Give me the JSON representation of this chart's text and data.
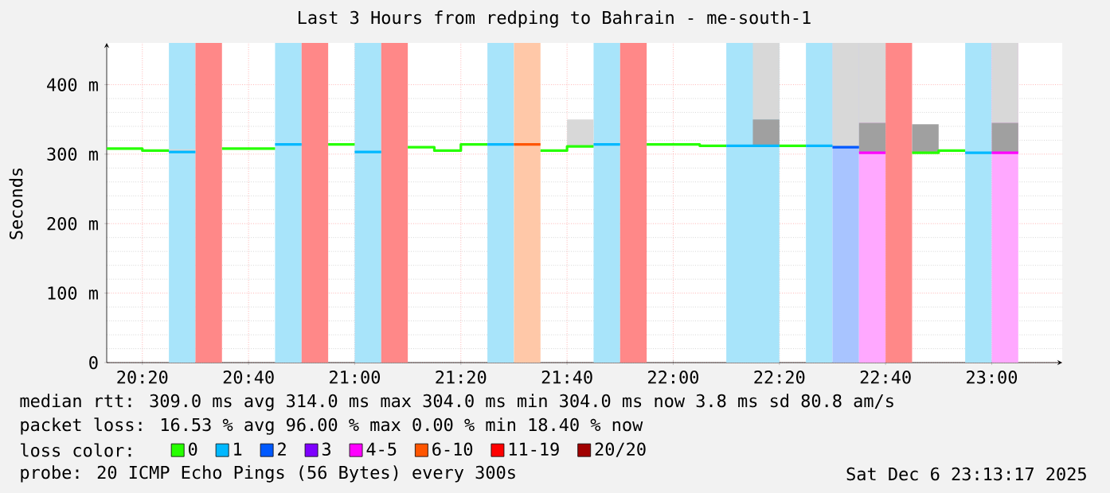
{
  "chart_data": {
    "type": "line",
    "title": "Last 3 Hours from redping to Bahrain - me-south-1",
    "ylabel": "Seconds",
    "legend_title": "loss color:",
    "xlim": [
      20.2214,
      23.2214
    ],
    "ylim": [
      0,
      460
    ],
    "xticks": [
      {
        "value": 20.3333,
        "label": "20:20"
      },
      {
        "value": 20.6667,
        "label": "20:40"
      },
      {
        "value": 21.0,
        "label": "21:00"
      },
      {
        "value": 21.3333,
        "label": "21:20"
      },
      {
        "value": 21.6667,
        "label": "21:40"
      },
      {
        "value": 22.0,
        "label": "22:00"
      },
      {
        "value": 22.3333,
        "label": "22:20"
      },
      {
        "value": 22.6667,
        "label": "22:40"
      },
      {
        "value": 23.0,
        "label": "23:00"
      }
    ],
    "yticks": [
      {
        "value": 0,
        "label": "0"
      },
      {
        "value": 100,
        "label": "100 m"
      },
      {
        "value": 200,
        "label": "200 m"
      },
      {
        "value": 300,
        "label": "300 m"
      },
      {
        "value": 400,
        "label": "400 m"
      }
    ],
    "grid": true,
    "legend": "bottom",
    "bands": [
      {
        "axis": "x",
        "from": 20.4167,
        "to": 20.5,
        "color": "#a8e4fa"
      },
      {
        "axis": "x",
        "from": 20.5,
        "to": 20.5833,
        "color": "#ff8888"
      },
      {
        "axis": "x",
        "from": 20.75,
        "to": 20.8333,
        "color": "#a8e4fa"
      },
      {
        "axis": "x",
        "from": 20.8333,
        "to": 20.9167,
        "color": "#ff8888"
      },
      {
        "axis": "x",
        "from": 21.0,
        "to": 21.0833,
        "color": "#a8e4fa"
      },
      {
        "axis": "x",
        "from": 21.0833,
        "to": 21.1667,
        "color": "#ff8888"
      },
      {
        "axis": "x",
        "from": 21.4167,
        "to": 21.5,
        "color": "#a8e4fa"
      },
      {
        "axis": "x",
        "from": 21.5,
        "to": 21.5833,
        "color": "#ffc8a8"
      },
      {
        "axis": "x",
        "from": 21.75,
        "to": 21.8333,
        "color": "#a8e4fa"
      },
      {
        "axis": "x",
        "from": 21.8333,
        "to": 21.9167,
        "color": "#ff8888"
      },
      {
        "axis": "x",
        "from": 22.1667,
        "to": 22.3333,
        "color": "#a8e4fa"
      },
      {
        "axis": "x",
        "from": 22.4167,
        "to": 22.5,
        "color": "#a8e4fa"
      },
      {
        "axis": "x",
        "from": 22.5,
        "to": 22.5833,
        "color": "#a8c4ff"
      },
      {
        "axis": "x",
        "from": 22.5833,
        "to": 22.6667,
        "color": "#ffa8ff"
      },
      {
        "axis": "x",
        "from": 22.6667,
        "to": 22.75,
        "color": "#ff8888"
      },
      {
        "axis": "x",
        "from": 22.9167,
        "to": 23.0,
        "color": "#a8e4fa"
      },
      {
        "axis": "x",
        "from": 23.0,
        "to": 23.0833,
        "color": "#ffa8ff"
      }
    ],
    "series": [
      {
        "type": "bar",
        "color": "#d8d8d8",
        "x": [
          20.4583,
          21.7083,
          22.2917,
          22.5417,
          22.625,
          23.0417
        ],
        "base": [
          303,
          311,
          350,
          310,
          345,
          345
        ],
        "values": [
          4,
          39,
          110,
          150,
          115,
          115
        ]
      },
      {
        "type": "bar",
        "color": "#a0a0a0",
        "x": [
          22.2917,
          22.625,
          22.7917,
          23.0417
        ],
        "base": [
          312,
          302,
          302,
          302
        ],
        "values": [
          38,
          43,
          41,
          43
        ]
      },
      {
        "name": "0",
        "color": "#26ff00",
        "x": [
          20.2214,
          20.3333,
          20.3333,
          20.4167,
          null,
          20.5833,
          20.75,
          null,
          20.9167,
          21.0,
          null,
          21.1667,
          21.25,
          21.25,
          21.3333,
          21.3333,
          21.4167,
          null,
          21.5833,
          21.6667,
          21.6667,
          21.75,
          null,
          21.9167,
          22.0833,
          22.0833,
          22.1667,
          null,
          22.3333,
          22.4167,
          null,
          22.75,
          22.8333,
          22.8333,
          22.9167
        ],
        "values": [
          308,
          308,
          305,
          305,
          null,
          308,
          308,
          null,
          314,
          314,
          null,
          310,
          310,
          305,
          305,
          314,
          314,
          null,
          305,
          305,
          311,
          311,
          null,
          314,
          314,
          312,
          312,
          null,
          312,
          312,
          null,
          302,
          302,
          305,
          305
        ]
      },
      {
        "name": "1",
        "color": "#00b8ff",
        "x": [
          20.4167,
          20.5,
          null,
          20.75,
          20.8333,
          null,
          21.0,
          21.0833,
          null,
          21.4167,
          21.5,
          null,
          21.75,
          21.8333,
          null,
          22.1667,
          22.3333,
          null,
          22.4167,
          22.5,
          null,
          22.9167,
          23.0
        ],
        "values": [
          303,
          303,
          null,
          314,
          314,
          null,
          303,
          303,
          null,
          314,
          314,
          null,
          314,
          314,
          null,
          312,
          312,
          null,
          312,
          312,
          null,
          302,
          302
        ]
      },
      {
        "name": "2",
        "color": "#0059ff",
        "x": [
          22.5,
          22.5833
        ],
        "values": [
          310,
          310
        ]
      },
      {
        "name": "3",
        "color": "#7e00ff"
      },
      {
        "name": "4-5",
        "color": "#ff00ff",
        "x": [
          22.5833,
          22.6667,
          null,
          23.0,
          23.0833
        ],
        "values": [
          302,
          302,
          null,
          302,
          302
        ]
      },
      {
        "name": "6-10",
        "color": "#ff5500",
        "x": [
          21.5,
          21.5833
        ],
        "values": [
          314,
          314
        ]
      },
      {
        "name": "11-19",
        "color": "#ff0000"
      },
      {
        "name": "20/20",
        "color": "#a10000"
      }
    ],
    "annotations": [
      "median rtt: 309.0 ms avg 314.0 ms max 304.0 ms min 304.0 ms now 3.8 ms sd 80.8 am/s",
      "packet loss: 16.53 % avg 96.00 % max 0.00 % min 18.40 % now",
      "probe: 20 ICMP Echo Pings (56 Bytes) every 300s",
      "Sat Dec 6 23:13:17 2025"
    ]
  }
}
